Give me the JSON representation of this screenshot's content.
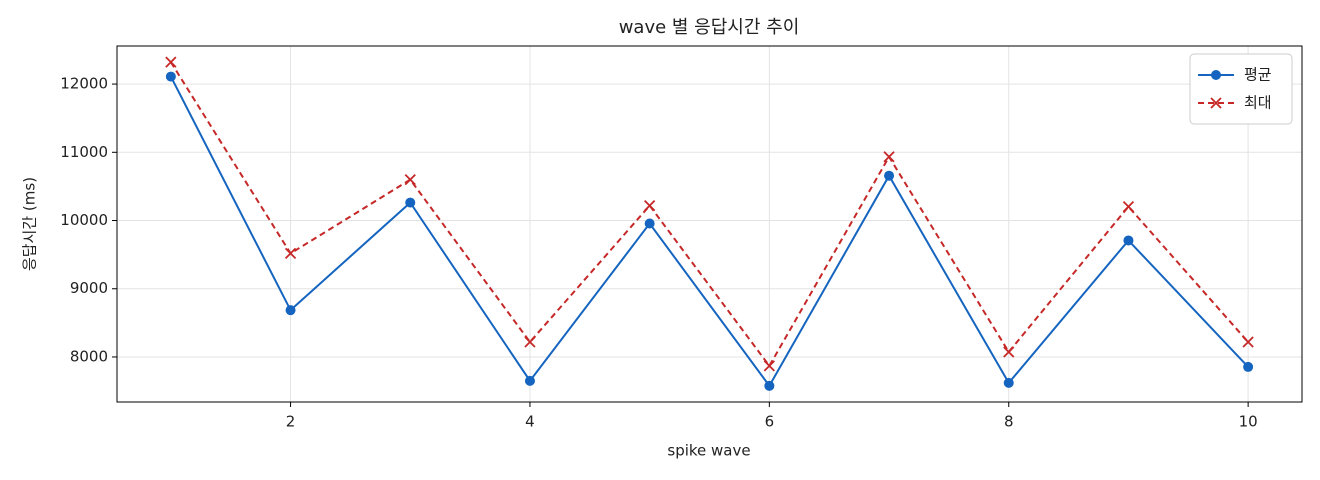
{
  "chart_data": {
    "type": "line",
    "title": "wave 별 응답시간 추이",
    "xlabel": "spike wave",
    "ylabel": "응답시간 (ms)",
    "x": [
      1,
      2,
      3,
      4,
      5,
      6,
      7,
      8,
      9,
      10
    ],
    "series": [
      {
        "name": "평균",
        "color": "#1565c0",
        "marker": "circle",
        "dash": false,
        "values": [
          12110,
          8686,
          10263,
          7650,
          9956,
          7577,
          10657,
          7620,
          9708,
          7854
        ]
      },
      {
        "name": "최대",
        "color": "#c62828",
        "marker": "x",
        "dash": true,
        "values": [
          12321,
          9518,
          10599,
          8219,
          10219,
          7869,
          10934,
          8073,
          10204,
          8219
        ]
      }
    ],
    "xlim": [
      0.55,
      10.45
    ],
    "xticks": [
      2,
      4,
      6,
      8,
      10
    ],
    "ylim": [
      7340,
      12558
    ],
    "yticks": [
      8000,
      9000,
      10000,
      11000,
      12000
    ],
    "grid": true,
    "legend": "upper right"
  }
}
